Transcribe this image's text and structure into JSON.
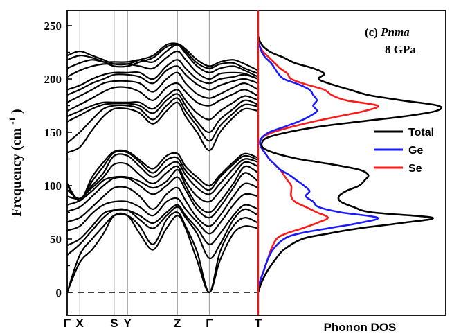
{
  "chart_data": [
    {
      "type": "line",
      "panel": "phonon-dispersion",
      "ylabel": "Frequency (cm",
      "ylabel_sup": "-1",
      "ylabel_close": ")",
      "ylim": [
        0,
        250
      ],
      "yticks": [
        "0",
        "50",
        "100",
        "150",
        "200",
        "250"
      ],
      "kpoints": [
        {
          "label": "Γ",
          "pos": 0.0
        },
        {
          "label": "X",
          "pos": 0.066
        },
        {
          "label": "S",
          "pos": 0.246
        },
        {
          "label": "Y",
          "pos": 0.316
        },
        {
          "label": "Z",
          "pos": 0.577
        },
        {
          "label": "Γ",
          "pos": 0.744
        },
        {
          "label": "T",
          "pos": 1.0
        }
      ],
      "x": [
        0,
        0.066,
        0.13,
        0.19,
        0.246,
        0.316,
        0.38,
        0.45,
        0.52,
        0.577,
        0.62,
        0.68,
        0.744,
        0.8,
        0.87,
        0.93,
        1.0
      ],
      "bands": [
        [
          0,
          28,
          40,
          55,
          72,
          72,
          55,
          40,
          60,
          72,
          60,
          30,
          0,
          30,
          55,
          62,
          60
        ],
        [
          0,
          35,
          50,
          62,
          72,
          72,
          62,
          45,
          68,
          75,
          62,
          38,
          0,
          38,
          62,
          70,
          65
        ],
        [
          35,
          45,
          58,
          70,
          77,
          77,
          68,
          60,
          72,
          80,
          70,
          55,
          32,
          45,
          68,
          78,
          72
        ],
        [
          44,
          50,
          62,
          74,
          77,
          77,
          72,
          65,
          75,
          82,
          72,
          60,
          45,
          55,
          72,
          82,
          78
        ],
        [
          58,
          62,
          74,
          82,
          85,
          85,
          80,
          72,
          85,
          88,
          78,
          66,
          55,
          65,
          82,
          92,
          90
        ],
        [
          66,
          70,
          80,
          90,
          98,
          98,
          90,
          78,
          92,
          98,
          86,
          70,
          62,
          72,
          90,
          102,
          98
        ],
        [
          76,
          80,
          90,
          100,
          107,
          107,
          100,
          92,
          100,
          108,
          96,
          78,
          70,
          80,
          98,
          112,
          104
        ],
        [
          82,
          86,
          95,
          105,
          108,
          108,
          104,
          98,
          104,
          115,
          100,
          82,
          75,
          85,
          102,
          118,
          112
        ],
        [
          90,
          88,
          98,
          108,
          120,
          120,
          110,
          102,
          112,
          118,
          104,
          90,
          85,
          95,
          110,
          122,
          118
        ],
        [
          96,
          88,
          100,
          112,
          128,
          128,
          118,
          108,
          118,
          122,
          110,
          98,
          92,
          102,
          116,
          125,
          122
        ],
        [
          100,
          86,
          104,
          118,
          131,
          131,
          122,
          112,
          124,
          126,
          114,
          104,
          96,
          108,
          120,
          128,
          124
        ],
        [
          102,
          86,
          108,
          122,
          132,
          132,
          124,
          116,
          128,
          130,
          118,
          108,
          100,
          110,
          122,
          130,
          126
        ],
        [
          131,
          136,
          152,
          165,
          172,
          172,
          168,
          158,
          170,
          178,
          165,
          150,
          133,
          150,
          164,
          172,
          170
        ],
        [
          140,
          150,
          162,
          172,
          175,
          175,
          172,
          162,
          175,
          182,
          170,
          156,
          142,
          156,
          168,
          176,
          174
        ],
        [
          160,
          166,
          172,
          176,
          177,
          177,
          175,
          168,
          180,
          186,
          175,
          160,
          150,
          162,
          172,
          180,
          176
        ],
        [
          165,
          170,
          175,
          178,
          178,
          178,
          178,
          172,
          184,
          190,
          180,
          168,
          162,
          170,
          178,
          184,
          180
        ],
        [
          170,
          176,
          182,
          188,
          192,
          192,
          188,
          180,
          192,
          196,
          188,
          178,
          175,
          180,
          186,
          190,
          184
        ],
        [
          178,
          184,
          190,
          196,
          198,
          198,
          196,
          188,
          200,
          206,
          196,
          186,
          182,
          186,
          192,
          196,
          190
        ],
        [
          185,
          190,
          196,
          200,
          204,
          204,
          202,
          196,
          208,
          212,
          204,
          195,
          190,
          194,
          198,
          200,
          196
        ],
        [
          190,
          194,
          200,
          204,
          206,
          206,
          206,
          200,
          212,
          218,
          210,
          200,
          196,
          200,
          202,
          204,
          200
        ],
        [
          202,
          208,
          212,
          214,
          214,
          214,
          212,
          210,
          220,
          226,
          218,
          206,
          200,
          205,
          206,
          205,
          200
        ],
        [
          210,
          215,
          218,
          216,
          216,
          216,
          218,
          216,
          226,
          232,
          224,
          212,
          206,
          210,
          212,
          208,
          202
        ],
        [
          218,
          222,
          220,
          216,
          212,
          212,
          216,
          220,
          230,
          232,
          226,
          215,
          210,
          214,
          215,
          210,
          205
        ],
        [
          222,
          226,
          222,
          218,
          214,
          214,
          218,
          222,
          232,
          233,
          228,
          218,
          212,
          216,
          218,
          214,
          208
        ]
      ]
    },
    {
      "type": "line",
      "panel": "phonon-dos",
      "xlabel": "Phonon DOS",
      "title": "(c) Pnma",
      "title_prefix": "(c) ",
      "title_italic": "Pnma",
      "subtitle": "8 GPa",
      "legend_position": "right",
      "ylim": [
        0,
        250
      ],
      "freq": [
        0,
        10,
        20,
        30,
        40,
        50,
        55,
        60,
        65,
        70,
        75,
        80,
        85,
        90,
        95,
        100,
        105,
        110,
        115,
        120,
        125,
        130,
        135,
        140,
        145,
        150,
        155,
        160,
        165,
        170,
        175,
        180,
        185,
        190,
        195,
        200,
        205,
        210,
        215,
        220,
        225,
        230,
        235,
        240
      ],
      "series": [
        {
          "name": "Total",
          "color": "#000000",
          "values": [
            0,
            0.02,
            0.05,
            0.09,
            0.14,
            0.24,
            0.38,
            0.55,
            0.78,
            0.95,
            0.62,
            0.52,
            0.45,
            0.44,
            0.48,
            0.55,
            0.58,
            0.6,
            0.55,
            0.4,
            0.22,
            0.1,
            0.03,
            0.02,
            0.05,
            0.16,
            0.32,
            0.55,
            0.8,
            0.97,
            0.98,
            0.78,
            0.6,
            0.5,
            0.4,
            0.33,
            0.36,
            0.3,
            0.2,
            0.14,
            0.07,
            0.03,
            0.01,
            0
          ]
        },
        {
          "name": "Ge",
          "color": "#1a1aff",
          "values": [
            0,
            0.01,
            0.03,
            0.05,
            0.08,
            0.14,
            0.22,
            0.38,
            0.55,
            0.65,
            0.45,
            0.33,
            0.3,
            0.26,
            0.28,
            0.25,
            0.21,
            0.17,
            0.12,
            0.09,
            0.06,
            0.04,
            0.02,
            0.01,
            0.02,
            0.06,
            0.14,
            0.22,
            0.28,
            0.32,
            0.3,
            0.32,
            0.3,
            0.28,
            0.22,
            0.14,
            0.11,
            0.09,
            0.07,
            0.04,
            0.02,
            0.01,
            0.0,
            0
          ]
        },
        {
          "name": "Se",
          "color": "#ff1a1a",
          "values": [
            0,
            0.01,
            0.03,
            0.05,
            0.07,
            0.1,
            0.15,
            0.24,
            0.32,
            0.38,
            0.32,
            0.26,
            0.2,
            0.18,
            0.18,
            0.18,
            0.16,
            0.14,
            0.12,
            0.09,
            0.06,
            0.04,
            0.02,
            0.01,
            0.02,
            0.08,
            0.18,
            0.3,
            0.44,
            0.58,
            0.65,
            0.48,
            0.4,
            0.36,
            0.26,
            0.18,
            0.16,
            0.12,
            0.09,
            0.06,
            0.03,
            0.01,
            0.0,
            0
          ]
        }
      ]
    }
  ]
}
